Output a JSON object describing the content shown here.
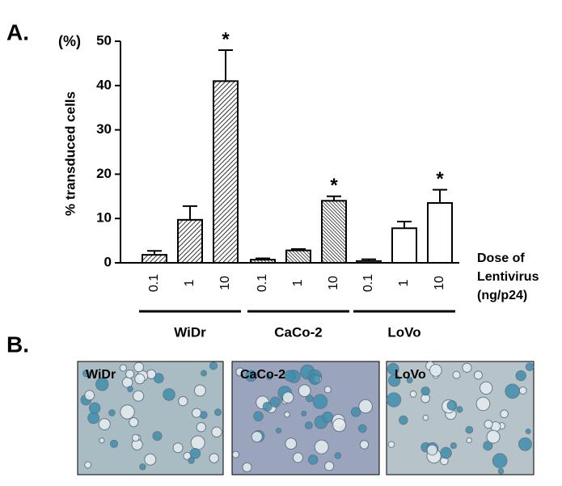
{
  "chart_data": {
    "type": "bar",
    "panel_label": "A.",
    "y_unit": "(%)",
    "ylabel": "% transduced cells",
    "xlabel": [
      "Dose of",
      "Lentivirus",
      "(ng/p24)"
    ],
    "categories": [
      "0.1",
      "1",
      "10"
    ],
    "series": [
      {
        "name": "WiDr",
        "color": "#ffffff",
        "pattern": "hatch",
        "values": [
          1.8,
          9.7,
          41
        ],
        "errors": [
          0.9,
          3.1,
          7
        ],
        "annotations": [
          null,
          null,
          "*"
        ]
      },
      {
        "name": "CaCo-2",
        "color": "#ffffff",
        "pattern": "hatch-dense",
        "values": [
          0.7,
          2.8,
          14
        ],
        "errors": [
          0.3,
          0.3,
          1
        ],
        "annotations": [
          null,
          null,
          "*"
        ]
      },
      {
        "name": "LoVo",
        "color": "#ffffff",
        "pattern": "none",
        "values": [
          0.4,
          7.8,
          13.5
        ],
        "errors": [
          0.4,
          1.5,
          3
        ],
        "annotations": [
          null,
          null,
          "*"
        ]
      }
    ],
    "ylim": [
      0,
      50
    ],
    "yticks": [
      0,
      10,
      20,
      30,
      40,
      50
    ]
  },
  "panel_b": {
    "label": "B.",
    "images": [
      "WiDr",
      "CaCo-2",
      "LoVo"
    ]
  }
}
